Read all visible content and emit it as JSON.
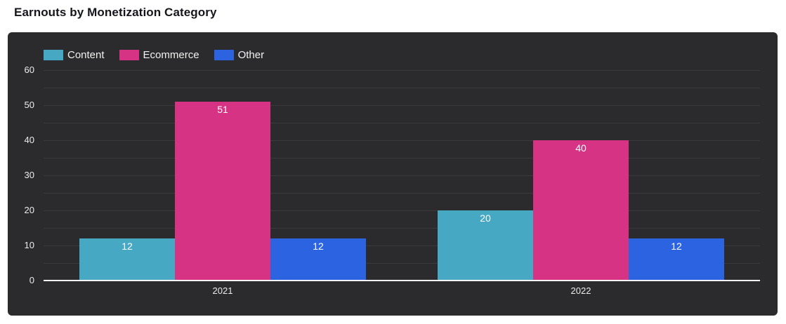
{
  "chart_data": {
    "type": "bar",
    "title": "Earnouts by Monetization Category",
    "categories": [
      "2021",
      "2022"
    ],
    "series": [
      {
        "name": "Content",
        "color": "#46a8c2",
        "values": [
          12,
          20
        ]
      },
      {
        "name": "Ecommerce",
        "color": "#d63384",
        "values": [
          51,
          40
        ]
      },
      {
        "name": "Other",
        "color": "#2c63e0",
        "values": [
          12,
          12
        ]
      }
    ],
    "xlabel": "",
    "ylabel": "",
    "ylim": [
      0,
      60
    ],
    "yticks": [
      0,
      10,
      20,
      30,
      40,
      50,
      60
    ],
    "grid": true,
    "grid_step": 5,
    "legend_position": "top-left",
    "value_labels": true,
    "theme": {
      "page_bg": "#ffffff",
      "title_color": "#15151c",
      "card_bg": "#2b2b2d",
      "grid_color": "#3a3a3d",
      "axis_color": "#fbfbfb",
      "tick_color": "#ececec",
      "legend_text_color": "#f2f2f2",
      "value_label_color": "#ffffff"
    }
  }
}
